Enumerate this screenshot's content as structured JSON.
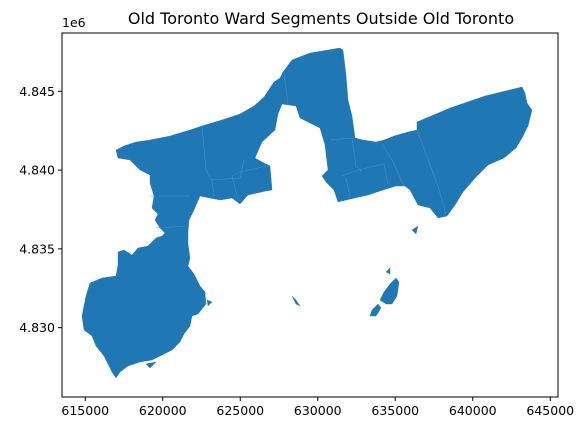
{
  "title": "Old Toronto Ward Segments Outside Old Toronto",
  "colors": {
    "ward_fill": "#1f77b4",
    "ward_edge": "#4a90c6",
    "background": "#ffffff",
    "axes": "#000000"
  },
  "axes": {
    "x_ticks": [
      {
        "value": 615000,
        "label": "615000"
      },
      {
        "value": 620000,
        "label": "620000"
      },
      {
        "value": 625000,
        "label": "625000"
      },
      {
        "value": 630000,
        "label": "630000"
      },
      {
        "value": 635000,
        "label": "635000"
      },
      {
        "value": 640000,
        "label": "640000"
      },
      {
        "value": 645000,
        "label": "645000"
      }
    ],
    "y_ticks": [
      {
        "value": 4830000,
        "label": "4.830"
      },
      {
        "value": 4835000,
        "label": "4.835"
      },
      {
        "value": 4840000,
        "label": "4.840"
      },
      {
        "value": 4845000,
        "label": "4.845"
      }
    ],
    "y_offset_label": "1e6",
    "xlim": [
      613500,
      645500
    ],
    "ylim": [
      4825600,
      4848700
    ]
  }
}
